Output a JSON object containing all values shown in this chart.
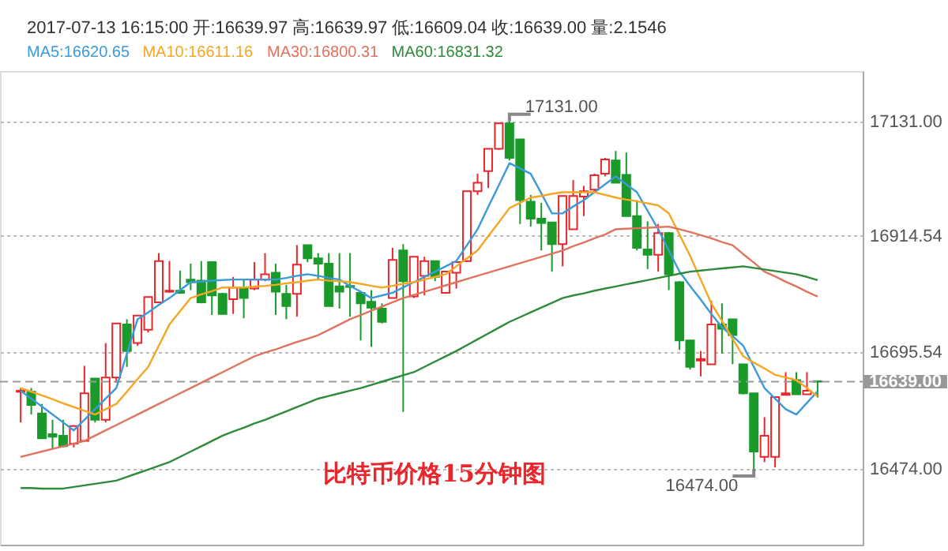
{
  "chart_data": {
    "type": "candlestick",
    "title": "2017-07-13 16:15:00  开:16639.97 高:16639.97 低:16609.04 收:16639.00 量:2.1546",
    "categories": [
      null,
      null,
      null,
      null,
      null,
      null,
      null,
      null,
      null,
      null,
      null,
      null,
      null,
      null,
      null,
      null,
      null,
      null,
      null,
      null,
      null,
      null,
      null,
      null,
      null,
      null,
      null,
      null,
      null,
      null,
      null,
      null,
      null,
      null,
      null,
      null,
      null,
      null,
      null,
      null,
      null,
      null,
      null,
      null,
      null,
      null,
      null,
      null,
      null,
      null,
      null,
      null,
      null,
      null,
      null,
      null,
      null,
      null,
      null,
      null,
      null,
      null,
      null,
      null,
      null,
      null,
      null,
      null,
      null,
      null,
      null,
      null,
      null,
      null,
      null,
      null
    ],
    "ohlc": [
      [
        16620,
        16627,
        16562,
        16622
      ],
      [
        16620,
        16627,
        16577,
        16595
      ],
      [
        16579,
        16597,
        16532,
        16532
      ],
      [
        16540,
        16567,
        16512,
        16535
      ],
      [
        16537,
        16567,
        16515,
        16517
      ],
      [
        16522,
        16557,
        16515,
        16555
      ],
      [
        16527,
        16669,
        16527,
        16617
      ],
      [
        16645,
        16645,
        16562,
        16567
      ],
      [
        16567,
        16712,
        16562,
        16647
      ],
      [
        16647,
        16749,
        16637,
        16749
      ],
      [
        16747,
        16757,
        16667,
        16697
      ],
      [
        16712,
        16764,
        16707,
        16764
      ],
      [
        16737,
        16799,
        16732,
        16799
      ],
      [
        16789,
        16882,
        16789,
        16867
      ],
      [
        16809,
        16867,
        16807,
        16811
      ],
      [
        16811,
        16849,
        16805,
        16807
      ],
      [
        16832,
        16862,
        16812,
        16827
      ],
      [
        16830,
        16867,
        16787,
        16789
      ],
      [
        16865,
        16865,
        16765,
        16802
      ],
      [
        16805,
        16807,
        16767,
        16767
      ],
      [
        16795,
        16837,
        16767,
        16817
      ],
      [
        16817,
        16832,
        16759,
        16797
      ],
      [
        16815,
        16865,
        16812,
        16832
      ],
      [
        16832,
        16882,
        16829,
        16842
      ],
      [
        16845,
        16862,
        16765,
        16809
      ],
      [
        16805,
        16822,
        16757,
        16782
      ],
      [
        16805,
        16897,
        16762,
        16860
      ],
      [
        16897,
        16897,
        16865,
        16872
      ],
      [
        16872,
        16882,
        16832,
        16862
      ],
      [
        16862,
        16882,
        16782,
        16782
      ],
      [
        16819,
        16882,
        16777,
        16809
      ],
      [
        16820,
        16882,
        16762,
        16818
      ],
      [
        16807,
        16807,
        16717,
        16787
      ],
      [
        16790,
        16812,
        16705,
        16779
      ],
      [
        16777,
        16787,
        16749,
        16752
      ],
      [
        16797,
        16892,
        16797,
        16869
      ],
      [
        16887,
        16899,
        16582,
        16829
      ],
      [
        16800,
        16875,
        16797,
        16875
      ],
      [
        16839,
        16875,
        16802,
        16867
      ],
      [
        16867,
        16867,
        16829,
        16837
      ],
      [
        16807,
        16847,
        16805,
        16847
      ],
      [
        16845,
        16867,
        16815,
        16865
      ],
      [
        16867,
        16999,
        16865,
        16999
      ],
      [
        16999,
        17032,
        16992,
        17015
      ],
      [
        17037,
        17079,
        17005,
        17079
      ],
      [
        17079,
        17129,
        17077,
        17127
      ],
      [
        17127,
        17131,
        17057,
        17062
      ],
      [
        17097,
        17097,
        16937,
        16982
      ],
      [
        16979,
        16992,
        16932,
        16947
      ],
      [
        16947,
        16977,
        16887,
        16939
      ],
      [
        16940,
        16940,
        16847,
        16899
      ],
      [
        16899,
        16990,
        16857,
        16990
      ],
      [
        16927,
        17020,
        16927,
        16990
      ],
      [
        16989,
        17009,
        16952,
        16999
      ],
      [
        17002,
        17032,
        16997,
        17029
      ],
      [
        17032,
        17062,
        17027,
        17059
      ],
      [
        17057,
        17075,
        17015,
        17015
      ],
      [
        17030,
        17072,
        16952,
        16952
      ],
      [
        16952,
        16982,
        16887,
        16892
      ],
      [
        16889,
        16942,
        16852,
        16879
      ],
      [
        16879,
        16937,
        16847,
        16920
      ],
      [
        16920,
        16922,
        16812,
        16842
      ],
      [
        16827,
        16829,
        16699,
        16717
      ],
      [
        16717,
        16717,
        16662,
        16667
      ],
      [
        16679,
        16697,
        16649,
        16682
      ],
      [
        16672,
        16792,
        16672,
        16747
      ],
      [
        16747,
        16787,
        16692,
        16739
      ],
      [
        16757,
        16757,
        16672,
        16727
      ],
      [
        16672,
        16672,
        16615,
        16617
      ],
      [
        16617,
        16617,
        16474,
        16507
      ],
      [
        16497,
        16572,
        16487,
        16537
      ],
      [
        16497,
        16610,
        16477,
        16610
      ],
      [
        16614,
        16657,
        16614,
        16617
      ],
      [
        16642,
        16657,
        16615,
        16615
      ],
      [
        16615,
        16657,
        16615,
        16622
      ],
      [
        16639.97,
        16639.97,
        16609.04,
        16639.0
      ]
    ],
    "colors": [
      "#e8262c",
      "#1a9a2a",
      "#1a9a2a",
      "#1a9a2a",
      "#1a9a2a",
      "#e8262c",
      "#e8262c",
      "#1a9a2a",
      "#e8262c",
      "#e8262c",
      "#1a9a2a",
      "#e8262c",
      "#e8262c",
      "#e8262c",
      "#e8262c",
      "#1a9a2a",
      "#1a9a2a",
      "#1a9a2a",
      "#1a9a2a",
      "#1a9a2a",
      "#e8262c",
      "#1a9a2a",
      "#e8262c",
      "#e8262c",
      "#1a9a2a",
      "#1a9a2a",
      "#e8262c",
      "#1a9a2a",
      "#1a9a2a",
      "#1a9a2a",
      "#1a9a2a",
      "#1a9a2a",
      "#1a9a2a",
      "#1a9a2a",
      "#1a9a2a",
      "#e8262c",
      "#1a9a2a",
      "#e8262c",
      "#e8262c",
      "#1a9a2a",
      "#e8262c",
      "#e8262c",
      "#e8262c",
      "#e8262c",
      "#e8262c",
      "#e8262c",
      "#1a9a2a",
      "#1a9a2a",
      "#1a9a2a",
      "#1a9a2a",
      "#1a9a2a",
      "#e8262c",
      "#e8262c",
      "#e8262c",
      "#e8262c",
      "#e8262c",
      "#1a9a2a",
      "#1a9a2a",
      "#1a9a2a",
      "#1a9a2a",
      "#e8262c",
      "#1a9a2a",
      "#1a9a2a",
      "#1a9a2a",
      "#e8262c",
      "#e8262c",
      "#1a9a2a",
      "#1a9a2a",
      "#1a9a2a",
      "#1a9a2a",
      "#e8262c",
      "#e8262c",
      "#e8262c",
      "#1a9a2a",
      "#e8262c",
      "#1a9a2a"
    ],
    "series": [
      {
        "type": "line",
        "name": "MA5:16620.65",
        "color": "#3b9ad9",
        "values": [
          16622,
          16607,
          16592,
          16577,
          16562,
          16547,
          16567,
          16587,
          16607,
          16627,
          16692,
          16757,
          16770,
          16784,
          16797,
          16812,
          16827,
          16828,
          16830,
          16831,
          16832,
          16832,
          16832,
          16832,
          16832,
          16835,
          16839,
          16842,
          16839,
          16835,
          16832,
          16820,
          16809,
          16797,
          16802,
          16807,
          16817,
          16827,
          16837,
          16847,
          16857,
          16867,
          16897,
          16927,
          16969,
          17010,
          17052,
          17042,
          17032,
          16995,
          16957,
          16957,
          16970,
          16982,
          16997,
          17012,
          17027,
          17012,
          16997,
          16962,
          16927,
          16887,
          16847,
          16820,
          16794,
          16767,
          16742,
          16725,
          16707,
          16667,
          16627,
          16607,
          16587,
          16577,
          16599,
          16621
        ]
      },
      {
        "type": "line",
        "name": "MA10:16611.16",
        "color": "#f5a623",
        "values": [
          16627,
          16620,
          16613,
          16606,
          16598,
          16591,
          16584,
          16577,
          16587,
          16597,
          16620,
          16644,
          16667,
          16707,
          16747,
          16772,
          16797,
          16804,
          16810,
          16817,
          16817,
          16817,
          16819,
          16820,
          16822,
          16825,
          16827,
          16830,
          16832,
          16830,
          16829,
          16827,
          16824,
          16820,
          16817,
          16820,
          16824,
          16827,
          16832,
          16837,
          16842,
          16857,
          16872,
          16887,
          16914,
          16940,
          16967,
          16977,
          16987,
          16990,
          16994,
          16997,
          16997,
          16997,
          16997,
          16992,
          16987,
          16983,
          16980,
          16976,
          16972,
          16957,
          16917,
          16877,
          16832,
          16787,
          16754,
          16720,
          16687,
          16675,
          16664,
          16652,
          16647,
          16642,
          16627,
          16611
        ]
      },
      {
        "type": "line",
        "name": "MA30:16800.31",
        "color": "#e0735e",
        "values": [
          16497,
          16502,
          16507,
          16512,
          16517,
          16522,
          16527,
          16537,
          16547,
          16557,
          16567,
          16577,
          16587,
          16597,
          16607,
          16617,
          16627,
          16637,
          16647,
          16657,
          16667,
          16677,
          16687,
          16694,
          16700,
          16707,
          16714,
          16720,
          16727,
          16737,
          16747,
          16757,
          16765,
          16773,
          16781,
          16789,
          16797,
          16803,
          16809,
          16815,
          16821,
          16827,
          16833,
          16839,
          16845,
          16851,
          16857,
          16863,
          16869,
          16875,
          16881,
          16887,
          16895,
          16902,
          16910,
          16917,
          16927,
          16928,
          16929,
          16930,
          16931,
          16932,
          16927,
          16922,
          16916,
          16910,
          16903,
          16897,
          16880,
          16864,
          16847,
          16838,
          16828,
          16819,
          16809,
          16800
        ]
      },
      {
        "type": "line",
        "name": "MA60:16831.32",
        "color": "#2e8b3a",
        "values": [
          16438,
          16438,
          16437,
          16437,
          16437,
          16440,
          16443,
          16446,
          16449,
          16452,
          16459,
          16466,
          16473,
          16480,
          16487,
          16497,
          16507,
          16517,
          16527,
          16537,
          16545,
          16552,
          16560,
          16567,
          16575,
          16583,
          16591,
          16599,
          16607,
          16612,
          16617,
          16622,
          16627,
          16633,
          16639,
          16645,
          16651,
          16657,
          16667,
          16677,
          16687,
          16697,
          16708,
          16719,
          16730,
          16741,
          16752,
          16761,
          16770,
          16779,
          16788,
          16797,
          16802,
          16806,
          16811,
          16815,
          16819,
          16823,
          16827,
          16831,
          16835,
          16839,
          16843,
          16847,
          16849,
          16851,
          16853,
          16855,
          16857,
          16854,
          16851,
          16848,
          16845,
          16842,
          16837,
          16831
        ]
      }
    ],
    "ylim": [
      16331,
      17226
    ],
    "yticks": [
      {
        "value": 16474,
        "label": "16474.00"
      },
      {
        "value": 16695.54,
        "label": "16695.54"
      },
      {
        "value": 16914.54,
        "label": "16914.54"
      },
      {
        "value": 17131,
        "label": "17131.00"
      }
    ],
    "ref_lines": [
      {
        "axis": "y",
        "value": 16639,
        "label": "16639.00",
        "line_style": "dashed",
        "color": "#999999"
      }
    ],
    "annotations": [
      "17131.00",
      "16474.00",
      "比特币价格15分钟图"
    ],
    "grid": "y",
    "legend": "top",
    "tick_labels": "y"
  }
}
